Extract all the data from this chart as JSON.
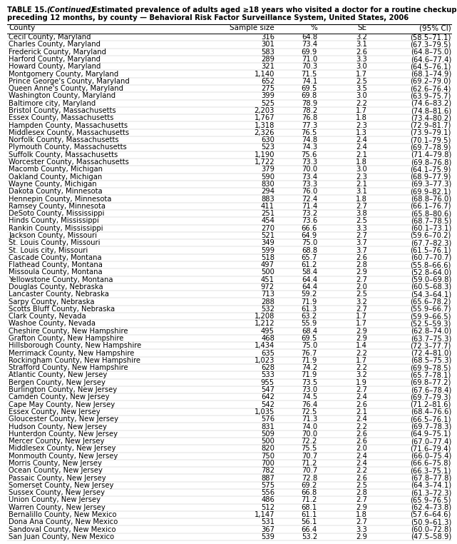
{
  "title_bold": "TABLE 15. ",
  "title_italic": "(Continued)",
  "title_rest": " Estimated prevalence of adults aged ≥18 years who visited a doctor for a routine checkup during the\npreceding 12 months, by county — Behavioral Risk Factor Surveillance System, United States, 2006",
  "columns": [
    "County",
    "Sample size",
    "%",
    "SE",
    "(95% CI)"
  ],
  "rows": [
    [
      "Cecil County, Maryland",
      "316",
      "64.8",
      "3.2",
      "(58.5–71.1)"
    ],
    [
      "Charles County, Maryland",
      "301",
      "73.4",
      "3.1",
      "(67.3–79.5)"
    ],
    [
      "Frederick County, Maryland",
      "583",
      "69.9",
      "2.6",
      "(64.8–75.0)"
    ],
    [
      "Harford County, Maryland",
      "289",
      "71.0",
      "3.3",
      "(64.6–77.4)"
    ],
    [
      "Howard County, Maryland",
      "321",
      "70.3",
      "3.0",
      "(64.5–76.1)"
    ],
    [
      "Montgomery County, Maryland",
      "1,140",
      "71.5",
      "1.7",
      "(68.1–74.9)"
    ],
    [
      "Prince George's County, Maryland",
      "652",
      "74.1",
      "2.5",
      "(69.2–79.0)"
    ],
    [
      "Queen Anne's County, Maryland",
      "275",
      "69.5",
      "3.5",
      "(62.6–76.4)"
    ],
    [
      "Washington County, Maryland",
      "399",
      "69.8",
      "3.0",
      "(63.9–75.7)"
    ],
    [
      "Baltimore city, Maryland",
      "525",
      "78.9",
      "2.2",
      "(74.6–83.2)"
    ],
    [
      "Bristol County, Massachusetts",
      "2,203",
      "78.2",
      "1.7",
      "(74.8–81.6)"
    ],
    [
      "Essex County, Massachusetts",
      "1,767",
      "76.8",
      "1.8",
      "(73.4–80.2)"
    ],
    [
      "Hampden County, Massachusetts",
      "1,318",
      "77.3",
      "2.3",
      "(72.9–81.7)"
    ],
    [
      "Middlesex County, Massachusetts",
      "2,326",
      "76.5",
      "1.3",
      "(73.9–79.1)"
    ],
    [
      "Norfolk County, Massachusetts",
      "630",
      "74.8",
      "2.4",
      "(70.1–79.5)"
    ],
    [
      "Plymouth County, Massachusetts",
      "523",
      "74.3",
      "2.4",
      "(69.7–78.9)"
    ],
    [
      "Suffolk County, Massachusetts",
      "1,190",
      "75.6",
      "2.1",
      "(71.4–79.8)"
    ],
    [
      "Worcester County, Massachusetts",
      "1,722",
      "73.3",
      "1.8",
      "(69.8–76.8)"
    ],
    [
      "Macomb County, Michigan",
      "379",
      "70.0",
      "3.0",
      "(64.1–75.9)"
    ],
    [
      "Oakland County, Michigan",
      "590",
      "73.4",
      "2.3",
      "(68.9–77.9)"
    ],
    [
      "Wayne County, Michigan",
      "830",
      "73.3",
      "2.1",
      "(69.3–77.3)"
    ],
    [
      "Dakota County, Minnesota",
      "294",
      "76.0",
      "3.1",
      "(69.9–82.1)"
    ],
    [
      "Hennepin County, Minnesota",
      "883",
      "72.4",
      "1.8",
      "(68.8–76.0)"
    ],
    [
      "Ramsey County, Minnesota",
      "411",
      "71.4",
      "2.7",
      "(66.1–76.7)"
    ],
    [
      "DeSoto County, Mississippi",
      "251",
      "73.2",
      "3.8",
      "(65.8–80.6)"
    ],
    [
      "Hinds County, Mississippi",
      "454",
      "73.6",
      "2.5",
      "(68.7–78.5)"
    ],
    [
      "Rankin County, Mississippi",
      "270",
      "66.6",
      "3.3",
      "(60.1–73.1)"
    ],
    [
      "Jackson County, Missouri",
      "521",
      "64.9",
      "2.7",
      "(59.6–70.2)"
    ],
    [
      "St. Louis County, Missouri",
      "349",
      "75.0",
      "3.7",
      "(67.7–82.3)"
    ],
    [
      "St. Louis city, Missouri",
      "599",
      "68.8",
      "3.7",
      "(61.5–76.1)"
    ],
    [
      "Cascade County, Montana",
      "518",
      "65.7",
      "2.6",
      "(60.7–70.7)"
    ],
    [
      "Flathead County, Montana",
      "497",
      "61.2",
      "2.8",
      "(55.8–66.6)"
    ],
    [
      "Missoula County, Montana",
      "500",
      "58.4",
      "2.9",
      "(52.8–64.0)"
    ],
    [
      "Yellowstone County, Montana",
      "451",
      "64.4",
      "2.7",
      "(59.0–69.8)"
    ],
    [
      "Douglas County, Nebraska",
      "972",
      "64.4",
      "2.0",
      "(60.5–68.3)"
    ],
    [
      "Lancaster County, Nebraska",
      "713",
      "59.2",
      "2.5",
      "(54.3–64.1)"
    ],
    [
      "Sarpy County, Nebraska",
      "288",
      "71.9",
      "3.2",
      "(65.6–78.2)"
    ],
    [
      "Scotts Bluff County, Nebraska",
      "532",
      "61.3",
      "2.7",
      "(55.9–66.7)"
    ],
    [
      "Clark County, Nevada",
      "1,208",
      "63.2",
      "1.7",
      "(59.9–66.5)"
    ],
    [
      "Washoe County, Nevada",
      "1,212",
      "55.9",
      "1.7",
      "(52.5–59.3)"
    ],
    [
      "Cheshire County, New Hampshire",
      "495",
      "68.4",
      "2.9",
      "(62.8–74.0)"
    ],
    [
      "Grafton County, New Hampshire",
      "468",
      "69.5",
      "2.9",
      "(63.7–75.3)"
    ],
    [
      "Hillsborough County, New Hampshire",
      "1,434",
      "75.0",
      "1.4",
      "(72.3–77.7)"
    ],
    [
      "Merrimack County, New Hampshire",
      "635",
      "76.7",
      "2.2",
      "(72.4–81.0)"
    ],
    [
      "Rockingham County, New Hampshire",
      "1,023",
      "71.9",
      "1.7",
      "(68.5–75.3)"
    ],
    [
      "Strafford County, New Hampshire",
      "628",
      "74.2",
      "2.2",
      "(69.9–78.5)"
    ],
    [
      "Atlantic County, New Jersey",
      "533",
      "71.9",
      "3.2",
      "(65.7–78.1)"
    ],
    [
      "Bergen County, New Jersey",
      "955",
      "73.5",
      "1.9",
      "(69.8–77.2)"
    ],
    [
      "Burlington County, New Jersey",
      "547",
      "73.0",
      "2.7",
      "(67.6–78.4)"
    ],
    [
      "Camden County, New Jersey",
      "642",
      "74.5",
      "2.4",
      "(69.7–79.3)"
    ],
    [
      "Cape May County, New Jersey",
      "542",
      "76.4",
      "2.6",
      "(71.2–81.6)"
    ],
    [
      "Essex County, New Jersey",
      "1,035",
      "72.5",
      "2.1",
      "(68.4–76.6)"
    ],
    [
      "Gloucester County, New Jersey",
      "576",
      "71.3",
      "2.4",
      "(66.5–76.1)"
    ],
    [
      "Hudson County, New Jersey",
      "831",
      "74.0",
      "2.2",
      "(69.7–78.3)"
    ],
    [
      "Hunterdon County, New Jersey",
      "509",
      "70.0",
      "2.6",
      "(64.9–75.1)"
    ],
    [
      "Mercer County, New Jersey",
      "500",
      "72.2",
      "2.6",
      "(67.0–77.4)"
    ],
    [
      "Middlesex County, New Jersey",
      "820",
      "75.5",
      "2.0",
      "(71.6–79.4)"
    ],
    [
      "Monmouth County, New Jersey",
      "750",
      "70.7",
      "2.4",
      "(66.0–75.4)"
    ],
    [
      "Morris County, New Jersey",
      "700",
      "71.2",
      "2.4",
      "(66.6–75.8)"
    ],
    [
      "Ocean County, New Jersey",
      "782",
      "70.7",
      "2.2",
      "(66.3–75.1)"
    ],
    [
      "Passaic County, New Jersey",
      "887",
      "72.8",
      "2.6",
      "(67.8–77.8)"
    ],
    [
      "Somerset County, New Jersey",
      "575",
      "69.2",
      "2.5",
      "(64.3–74.1)"
    ],
    [
      "Sussex County, New Jersey",
      "556",
      "66.8",
      "2.8",
      "(61.3–72.3)"
    ],
    [
      "Union County, New Jersey",
      "486",
      "71.2",
      "2.7",
      "(65.9–76.5)"
    ],
    [
      "Warren County, New Jersey",
      "512",
      "68.1",
      "2.9",
      "(62.4–73.8)"
    ],
    [
      "Bernalillo County, New Mexico",
      "1,147",
      "61.1",
      "1.8",
      "(57.6–64.6)"
    ],
    [
      "Dona Ana County, New Mexico",
      "531",
      "56.1",
      "2.7",
      "(50.9–61.3)"
    ],
    [
      "Sandoval County, New Mexico",
      "367",
      "66.4",
      "3.3",
      "(60.0–72.8)"
    ],
    [
      "San Juan County, New Mexico",
      "539",
      "53.2",
      "2.9",
      "(47.5–58.9)"
    ]
  ],
  "text_color": "#000000",
  "title_fontsize": 7.2,
  "header_fontsize": 7.5,
  "row_fontsize": 7.2,
  "fig_width": 6.41,
  "fig_height": 7.62,
  "dpi": 100
}
